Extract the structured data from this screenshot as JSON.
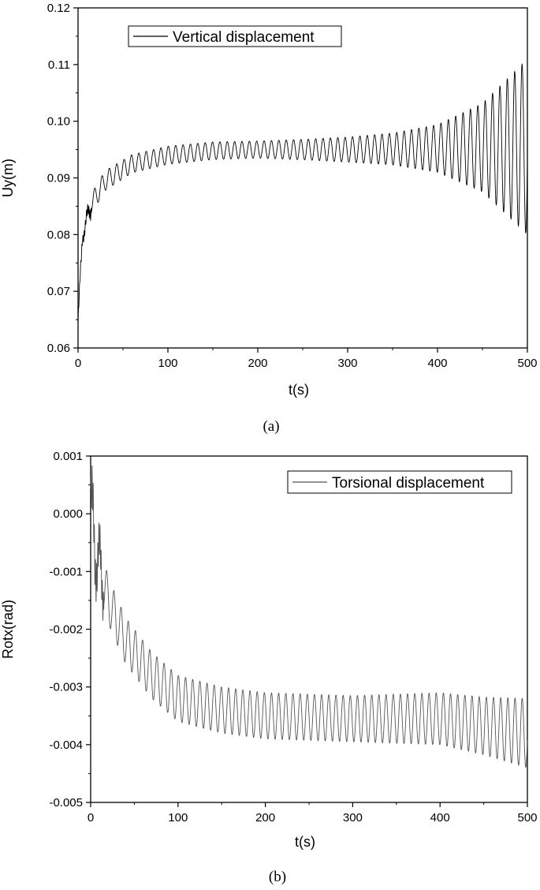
{
  "chart_data": [
    {
      "type": "line",
      "panel_caption": "(a)",
      "xlabel": "t(s)",
      "ylabel": "Uy(m)",
      "xlim": [
        0,
        500
      ],
      "ylim": [
        0.06,
        0.12
      ],
      "xticks": [
        0,
        100,
        200,
        300,
        400,
        500
      ],
      "yticks": [
        0.06,
        0.07,
        0.08,
        0.09,
        0.1,
        0.11,
        0.12
      ],
      "ytick_labels": [
        "0.06",
        "0.07",
        "0.08",
        "0.09",
        "0.10",
        "0.11",
        "0.12"
      ],
      "xtick_labels": [
        "0",
        "100",
        "200",
        "300",
        "400",
        "500"
      ],
      "grid": false,
      "legend_position": "top-left",
      "series": [
        {
          "name": "Vertical displacement",
          "color": "#000000",
          "initial_value": 0.0645,
          "mean_envelope": [
            [
              0,
              0.0645
            ],
            [
              5,
              0.08
            ],
            [
              15,
              0.0855
            ],
            [
              30,
              0.0895
            ],
            [
              60,
              0.0925
            ],
            [
              100,
              0.094
            ],
            [
              150,
              0.0948
            ],
            [
              200,
              0.095
            ],
            [
              300,
              0.095
            ],
            [
              400,
              0.0952
            ],
            [
              500,
              0.0955
            ]
          ],
          "amplitude_envelope": [
            [
              0,
              0.001
            ],
            [
              20,
              0.0018
            ],
            [
              60,
              0.0016
            ],
            [
              100,
              0.0016
            ],
            [
              200,
              0.0015
            ],
            [
              250,
              0.0018
            ],
            [
              300,
              0.0022
            ],
            [
              350,
              0.0028
            ],
            [
              400,
              0.0042
            ],
            [
              450,
              0.0078
            ],
            [
              500,
              0.0155
            ]
          ],
          "oscillation_period_s": 8.2
        }
      ]
    },
    {
      "type": "line",
      "panel_caption": "(b)",
      "xlabel": "t(s)",
      "ylabel": "Rotx(rad)",
      "xlim": [
        0,
        500
      ],
      "ylim": [
        -0.005,
        0.001
      ],
      "xticks": [
        0,
        100,
        200,
        300,
        400,
        500
      ],
      "yticks": [
        -0.005,
        -0.004,
        -0.003,
        -0.002,
        -0.001,
        0.0,
        0.001
      ],
      "ytick_labels": [
        "-0.005",
        "-0.004",
        "-0.003",
        "-0.002",
        "-0.001",
        "0.000",
        "0.001"
      ],
      "xtick_labels": [
        "0",
        "100",
        "200",
        "300",
        "400",
        "500"
      ],
      "grid": false,
      "legend_position": "top-right",
      "series": [
        {
          "name": "Torsional displacement",
          "color": "#555555",
          "initial_value": 0.0006,
          "mean_envelope": [
            [
              0,
              0.0002
            ],
            [
              5,
              -0.0006
            ],
            [
              10,
              -0.0009
            ],
            [
              20,
              -0.0015
            ],
            [
              40,
              -0.0022
            ],
            [
              70,
              -0.0028
            ],
            [
              100,
              -0.0032
            ],
            [
              150,
              -0.0034
            ],
            [
              200,
              -0.0035
            ],
            [
              300,
              -0.00355
            ],
            [
              400,
              -0.00355
            ],
            [
              500,
              -0.0038
            ]
          ],
          "amplitude_envelope": [
            [
              0,
              0.0006
            ],
            [
              20,
              0.0004
            ],
            [
              50,
              0.0004
            ],
            [
              100,
              0.0004
            ],
            [
              300,
              0.0004
            ],
            [
              400,
              0.00045
            ],
            [
              450,
              0.0005
            ],
            [
              500,
              0.0006
            ]
          ],
          "oscillation_period_s": 8.2
        }
      ]
    }
  ]
}
